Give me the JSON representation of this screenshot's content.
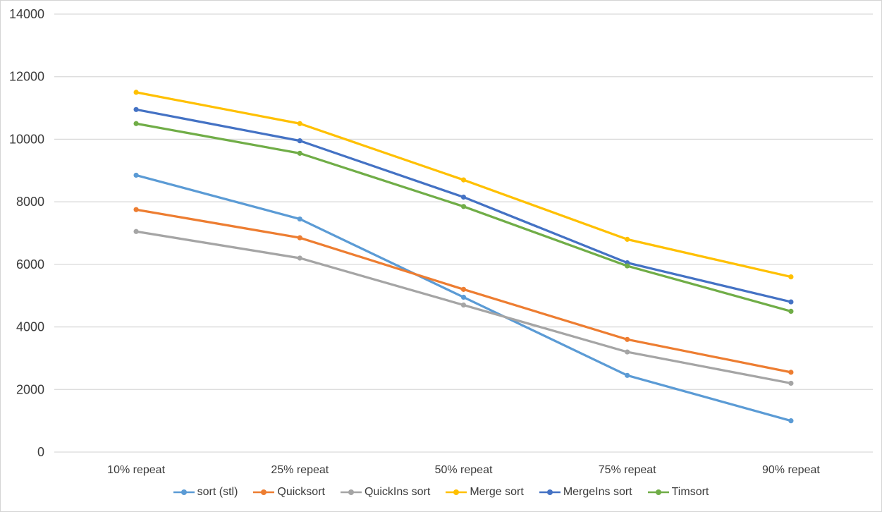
{
  "chart": {
    "background": "#ffffff",
    "border_color": "#d4d4d4",
    "gridline_color": "#d9d9d9",
    "axis_text_color": "#3b3b3b"
  },
  "chart_data": {
    "type": "line",
    "title": "",
    "xlabel": "",
    "ylabel": "",
    "categories": [
      "10% repeat",
      "25% repeat",
      "50% repeat",
      "75% repeat",
      "90% repeat"
    ],
    "series": [
      {
        "name": "sort (stl)",
        "color": "#5B9BD5",
        "values": [
          8850,
          7450,
          4950,
          2450,
          1000
        ]
      },
      {
        "name": "Quicksort",
        "color": "#ED7D31",
        "values": [
          7750,
          6850,
          5200,
          3600,
          2550
        ]
      },
      {
        "name": "QuickIns sort",
        "color": "#A5A5A5",
        "values": [
          7050,
          6200,
          4700,
          3200,
          2200
        ]
      },
      {
        "name": "Merge sort",
        "color": "#FFC000",
        "values": [
          11500,
          10500,
          8700,
          6800,
          5600
        ]
      },
      {
        "name": "MergeIns sort",
        "color": "#4472C4",
        "values": [
          10950,
          9950,
          8150,
          6050,
          4800
        ]
      },
      {
        "name": "Timsort",
        "color": "#70AD47",
        "values": [
          10500,
          9550,
          7850,
          5950,
          4500
        ]
      }
    ],
    "ylim": [
      0,
      14000
    ],
    "yticks": [
      0,
      2000,
      4000,
      6000,
      8000,
      10000,
      12000,
      14000
    ],
    "grid": true,
    "legend_position": "bottom",
    "marker": "circle"
  }
}
